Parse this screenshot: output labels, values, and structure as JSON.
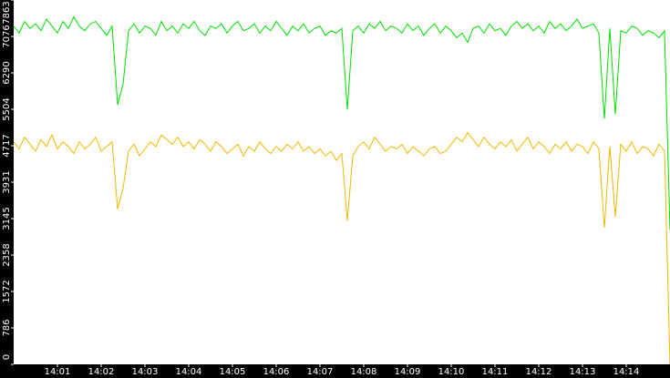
{
  "chart_data": {
    "type": "line",
    "x": [
      840,
      840.125,
      840.25,
      840.375,
      840.5,
      840.625,
      840.75,
      840.875,
      841,
      841.125,
      841.25,
      841.375,
      841.5,
      841.625,
      841.75,
      841.875,
      842,
      842.125,
      842.25,
      842.375,
      842.5,
      842.625,
      842.75,
      842.875,
      843,
      843.125,
      843.25,
      843.375,
      843.5,
      843.625,
      843.75,
      843.875,
      844,
      844.125,
      844.25,
      844.375,
      844.5,
      844.625,
      844.75,
      844.875,
      845,
      845.125,
      845.25,
      845.375,
      845.5,
      845.625,
      845.75,
      845.875,
      846,
      846.125,
      846.25,
      846.375,
      846.5,
      846.625,
      846.75,
      846.875,
      847,
      847.125,
      847.25,
      847.375,
      847.5,
      847.625,
      847.75,
      847.875,
      848,
      848.125,
      848.25,
      848.375,
      848.5,
      848.625,
      848.75,
      848.875,
      849,
      849.125,
      849.25,
      849.375,
      849.5,
      849.625,
      849.75,
      849.875,
      850,
      850.125,
      850.25,
      850.375,
      850.5,
      850.625,
      850.75,
      850.875,
      851,
      851.125,
      851.25,
      851.375,
      851.5,
      851.625,
      851.75,
      851.875,
      852,
      852.125,
      852.25,
      852.375,
      852.5,
      852.625,
      852.75,
      852.875,
      853,
      853.125,
      853.25,
      853.375,
      853.5,
      853.625,
      853.75,
      853.875,
      854,
      854.125,
      854.25,
      854.375,
      854.5,
      854.625,
      854.75,
      854.875,
      855
    ],
    "series": [
      {
        "color": "#00e000",
        "values": [
          7300,
          7150,
          7400,
          7250,
          7350,
          7200,
          7450,
          7300,
          7150,
          7400,
          7250,
          7500,
          7300,
          7200,
          7350,
          7400,
          7250,
          7100,
          7300,
          5600,
          6050,
          7200,
          7350,
          7150,
          7300,
          7250,
          7100,
          7400,
          7200,
          7300,
          7150,
          7350,
          7250,
          7400,
          7200,
          7100,
          7300,
          7250,
          7350,
          7150,
          7300,
          7400,
          7200,
          7250,
          7350,
          7150,
          7300,
          7200,
          7400,
          7250,
          7100,
          7300,
          7200,
          7350,
          7150,
          7250,
          7300,
          7100,
          7200,
          7150,
          7250,
          5500,
          7200,
          7300,
          7150,
          7350,
          7250,
          7400,
          7200,
          7300,
          7250,
          7150,
          7350,
          7200,
          7300,
          7100,
          7250,
          7350,
          7150,
          7300,
          7200,
          7050,
          7150,
          6950,
          7250,
          7300,
          7150,
          7350,
          7200,
          7250,
          7100,
          7300,
          7400,
          7250,
          7350,
          7200,
          7300,
          7150,
          7400,
          7250,
          7350,
          7200,
          7300,
          7450,
          7250,
          7300,
          7350,
          7150,
          5300,
          7250,
          5400,
          7200,
          7150,
          7300,
          7250,
          7100,
          7200,
          7150,
          7050,
          7200,
          2900
        ]
      },
      {
        "color": "#f0b800",
        "values": [
          4800,
          4650,
          4900,
          4750,
          4600,
          4850,
          4700,
          4950,
          4650,
          4800,
          4700,
          4550,
          4800,
          4650,
          4750,
          4900,
          4600,
          4700,
          4800,
          3350,
          3800,
          4600,
          4750,
          4500,
          4650,
          4800,
          4700,
          4950,
          4850,
          4750,
          4900,
          4700,
          4800,
          4650,
          4850,
          4750,
          4600,
          4800,
          4700,
          4550,
          4650,
          4750,
          4500,
          4700,
          4600,
          4800,
          4650,
          4550,
          4700,
          4600,
          4750,
          4650,
          4800,
          4600,
          4700,
          4550,
          4650,
          4500,
          4600,
          4400,
          4550,
          3100,
          4500,
          4700,
          4800,
          4650,
          4900,
          4750,
          4600,
          4700,
          4650,
          4750,
          4550,
          4700,
          4600,
          4500,
          4650,
          4700,
          4550,
          4600,
          4750,
          4900,
          4800,
          5000,
          4850,
          4700,
          4900,
          4750,
          4650,
          4800,
          4700,
          4850,
          4600,
          4750,
          4900,
          4650,
          4800,
          4700,
          4550,
          4750,
          4650,
          4800,
          4600,
          4750,
          4700,
          4550,
          4800,
          4650,
          2950,
          4700,
          3180,
          4750,
          4600,
          4800,
          4550,
          4700,
          4650,
          4500,
          4750,
          4600,
          0
        ]
      }
    ],
    "xlim": [
      840,
      855
    ],
    "xticks": [
      {
        "value": 841,
        "label": "14:01"
      },
      {
        "value": 842,
        "label": "14:02"
      },
      {
        "value": 843,
        "label": "14:03"
      },
      {
        "value": 844,
        "label": "14:04"
      },
      {
        "value": 845,
        "label": "14:05"
      },
      {
        "value": 846,
        "label": "14:06"
      },
      {
        "value": 847,
        "label": "14:07"
      },
      {
        "value": 848,
        "label": "14:08"
      },
      {
        "value": 849,
        "label": "14:09"
      },
      {
        "value": 850,
        "label": "14:10"
      },
      {
        "value": 851,
        "label": "14:11"
      },
      {
        "value": 852,
        "label": "14:12"
      },
      {
        "value": 853,
        "label": "14:13"
      },
      {
        "value": 854,
        "label": "14:14"
      }
    ],
    "ylim": [
      0,
      7863
    ],
    "yticks": [
      0,
      786,
      1572,
      2358,
      3145,
      3931,
      4717,
      5504,
      6290,
      7076,
      7863
    ]
  }
}
